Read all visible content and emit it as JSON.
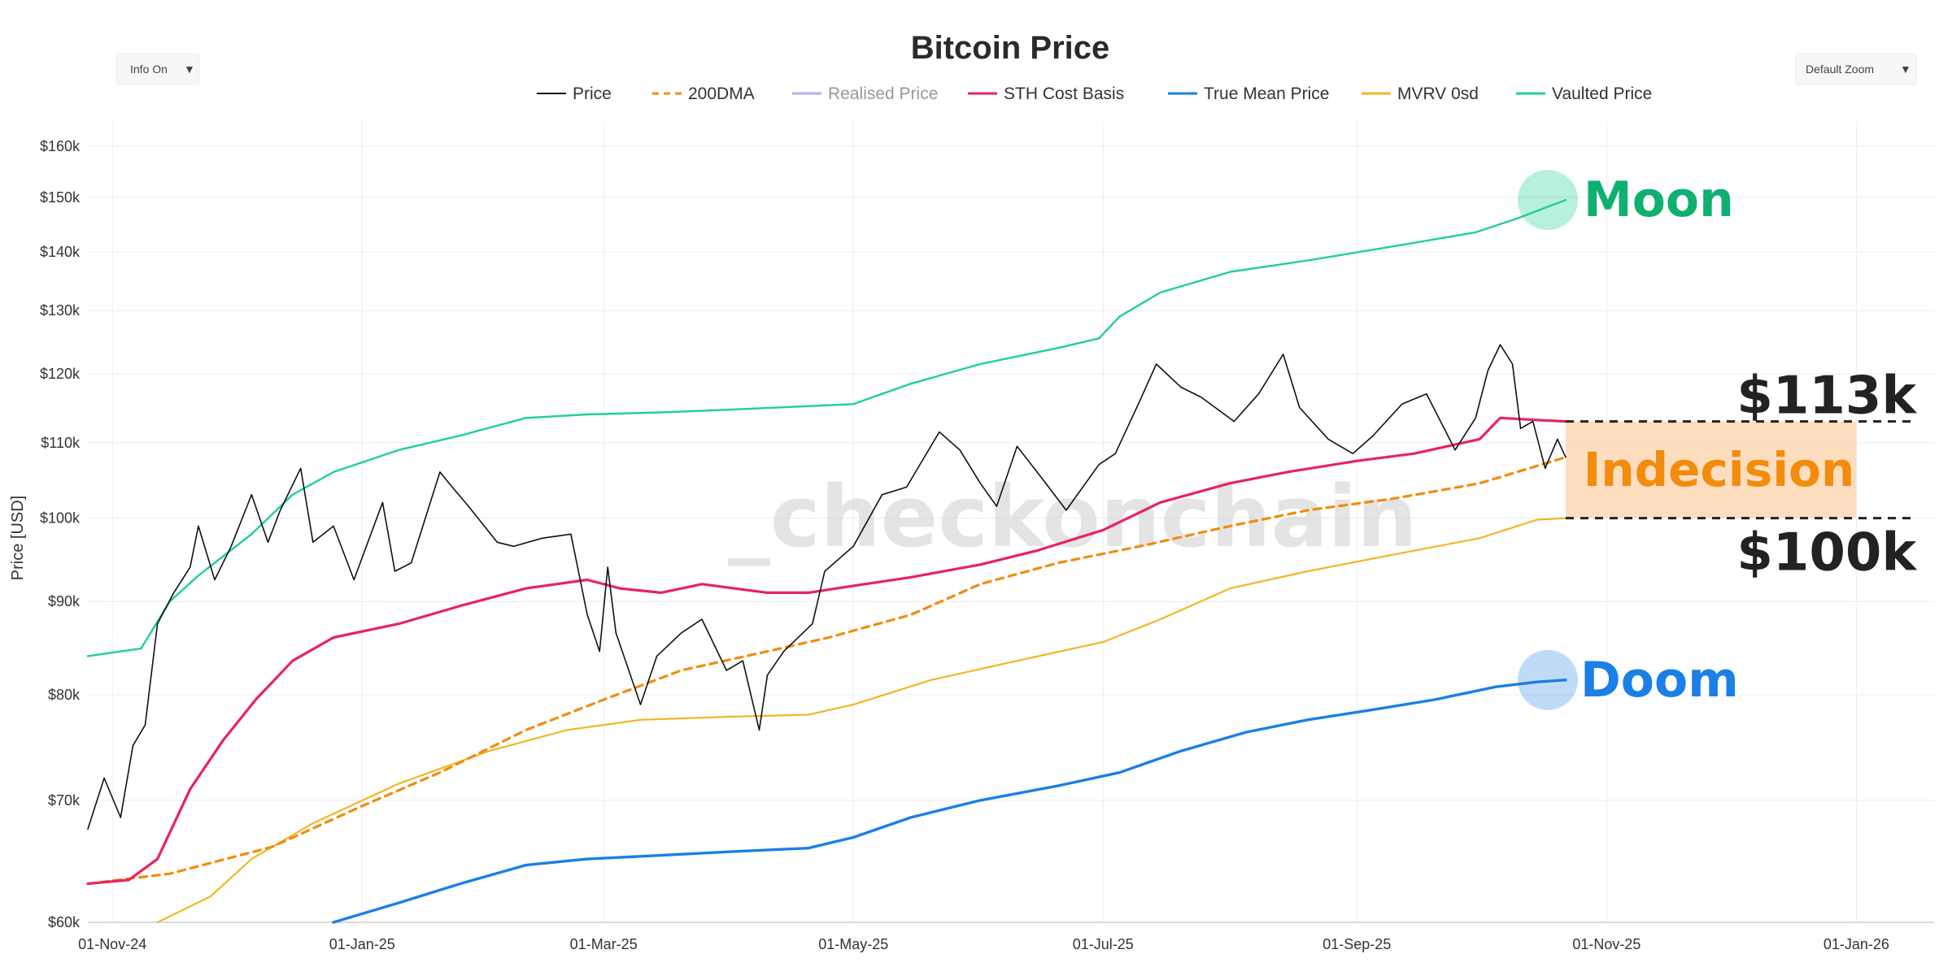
{
  "header": {
    "title": "Bitcoin Price",
    "info_toggle": "Info On",
    "zoom_select": "Default Zoom"
  },
  "watermark": "_checkonchain",
  "colors": {
    "price": "#111111",
    "dma200": "#f28c0c",
    "realised": "#b9aef0",
    "sth": "#e8235f",
    "true_mean": "#1a7fe6",
    "mvrv0": "#f4b526",
    "vaulted": "#20d092",
    "moon": "#10b070",
    "doom": "#1a7fe6",
    "indecision": "#f28c0c",
    "indecision_fill": "#fbd8b4"
  },
  "annotations": {
    "moon": "Moon",
    "doom": "Doom",
    "indecision": "Indecision",
    "upper_level": "$113k",
    "lower_level": "$100k"
  },
  "chart_data": {
    "type": "line",
    "title": "Bitcoin Price",
    "ylabel": "Price [USD]",
    "yscale": "log",
    "ylim": [
      60000,
      165000
    ],
    "xlim": [
      "2024-10-26",
      "2026-01-20"
    ],
    "x_ticks": [
      "01-Nov-24",
      "01-Jan-25",
      "01-Mar-25",
      "01-May-25",
      "01-Jul-25",
      "01-Sep-25",
      "01-Nov-25",
      "01-Jan-26"
    ],
    "y_ticks": [
      "$60k",
      "$70k",
      "$80k",
      "$90k",
      "$100k",
      "$110k",
      "$120k",
      "$130k",
      "$140k",
      "$150k",
      "$160k"
    ],
    "legend": [
      {
        "name": "Price",
        "key": "price",
        "style": "solid"
      },
      {
        "name": "200DMA",
        "key": "dma200",
        "style": "dashed"
      },
      {
        "name": "Realised Price",
        "key": "realised",
        "style": "solid",
        "hidden": true
      },
      {
        "name": "STH Cost Basis",
        "key": "sth",
        "style": "solid"
      },
      {
        "name": "True Mean Price",
        "key": "true_mean",
        "style": "solid"
      },
      {
        "name": "MVRV 0sd",
        "key": "mvrv0",
        "style": "solid"
      },
      {
        "name": "Vaulted Price",
        "key": "vaulted",
        "style": "solid"
      }
    ],
    "reference_lines": [
      113000,
      100000
    ],
    "series": [
      {
        "name": "Price",
        "key": "price",
        "width": 1.6,
        "points": [
          [
            "2024-10-26",
            67500
          ],
          [
            "2024-10-30",
            72000
          ],
          [
            "2024-11-03",
            68500
          ],
          [
            "2024-11-06",
            75000
          ],
          [
            "2024-11-09",
            77000
          ],
          [
            "2024-11-12",
            87500
          ],
          [
            "2024-11-16",
            91000
          ],
          [
            "2024-11-20",
            94000
          ],
          [
            "2024-11-22",
            99000
          ],
          [
            "2024-11-26",
            92500
          ],
          [
            "2024-11-30",
            96500
          ],
          [
            "2024-12-05",
            103000
          ],
          [
            "2024-12-09",
            97000
          ],
          [
            "2024-12-12",
            101000
          ],
          [
            "2024-12-17",
            106500
          ],
          [
            "2024-12-20",
            97000
          ],
          [
            "2024-12-25",
            99000
          ],
          [
            "2024-12-30",
            92500
          ],
          [
            "2025-01-06",
            102000
          ],
          [
            "2025-01-09",
            93500
          ],
          [
            "2025-01-13",
            94500
          ],
          [
            "2025-01-20",
            106000
          ],
          [
            "2025-01-23",
            104000
          ],
          [
            "2025-01-27",
            101500
          ],
          [
            "2025-02-03",
            97000
          ],
          [
            "2025-02-07",
            96500
          ],
          [
            "2025-02-14",
            97500
          ],
          [
            "2025-02-21",
            98000
          ],
          [
            "2025-02-25",
            88500
          ],
          [
            "2025-02-28",
            84500
          ],
          [
            "2025-03-02",
            94000
          ],
          [
            "2025-03-04",
            86500
          ],
          [
            "2025-03-10",
            79000
          ],
          [
            "2025-03-14",
            84000
          ],
          [
            "2025-03-20",
            86500
          ],
          [
            "2025-03-25",
            88000
          ],
          [
            "2025-03-31",
            82500
          ],
          [
            "2025-04-04",
            83500
          ],
          [
            "2025-04-08",
            76500
          ],
          [
            "2025-04-10",
            82000
          ],
          [
            "2025-04-14",
            84500
          ],
          [
            "2025-04-21",
            87500
          ],
          [
            "2025-04-24",
            93500
          ],
          [
            "2025-05-01",
            96500
          ],
          [
            "2025-05-08",
            103000
          ],
          [
            "2025-05-14",
            104000
          ],
          [
            "2025-05-22",
            111500
          ],
          [
            "2025-05-27",
            109000
          ],
          [
            "2025-06-01",
            104500
          ],
          [
            "2025-06-05",
            101500
          ],
          [
            "2025-06-10",
            109500
          ],
          [
            "2025-06-17",
            104500
          ],
          [
            "2025-06-22",
            101000
          ],
          [
            "2025-06-30",
            107000
          ],
          [
            "2025-07-04",
            108500
          ],
          [
            "2025-07-10",
            116000
          ],
          [
            "2025-07-14",
            121500
          ],
          [
            "2025-07-20",
            118000
          ],
          [
            "2025-07-25",
            116500
          ],
          [
            "2025-08-02",
            113000
          ],
          [
            "2025-08-08",
            117000
          ],
          [
            "2025-08-14",
            123000
          ],
          [
            "2025-08-18",
            115000
          ],
          [
            "2025-08-25",
            110500
          ],
          [
            "2025-08-31",
            108500
          ],
          [
            "2025-09-05",
            111000
          ],
          [
            "2025-09-12",
            115500
          ],
          [
            "2025-09-18",
            117000
          ],
          [
            "2025-09-25",
            109000
          ],
          [
            "2025-09-30",
            113500
          ],
          [
            "2025-10-03",
            120500
          ],
          [
            "2025-10-06",
            124500
          ],
          [
            "2025-10-09",
            121500
          ],
          [
            "2025-10-11",
            112000
          ],
          [
            "2025-10-14",
            113000
          ],
          [
            "2025-10-17",
            106500
          ],
          [
            "2025-10-20",
            110500
          ],
          [
            "2025-10-22",
            108000
          ]
        ]
      },
      {
        "name": "200DMA",
        "key": "dma200",
        "width": 3.2,
        "dash": "9,7",
        "points": [
          [
            "2024-10-26",
            63000
          ],
          [
            "2024-11-15",
            63800
          ],
          [
            "2024-12-10",
            66000
          ],
          [
            "2025-01-01",
            69500
          ],
          [
            "2025-01-20",
            72500
          ],
          [
            "2025-02-10",
            76500
          ],
          [
            "2025-03-01",
            79500
          ],
          [
            "2025-03-20",
            82500
          ],
          [
            "2025-04-10",
            84500
          ],
          [
            "2025-04-25",
            86000
          ],
          [
            "2025-05-15",
            88500
          ],
          [
            "2025-06-01",
            92000
          ],
          [
            "2025-06-20",
            94500
          ],
          [
            "2025-07-10",
            96500
          ],
          [
            "2025-08-01",
            99000
          ],
          [
            "2025-08-20",
            101000
          ],
          [
            "2025-09-10",
            102500
          ],
          [
            "2025-10-01",
            104500
          ],
          [
            "2025-10-22",
            108000
          ]
        ]
      },
      {
        "name": "STH Cost Basis",
        "key": "sth",
        "width": 3.2,
        "points": [
          [
            "2024-10-26",
            63000
          ],
          [
            "2024-11-05",
            63300
          ],
          [
            "2024-11-12",
            65000
          ],
          [
            "2024-11-20",
            71000
          ],
          [
            "2024-11-28",
            75500
          ],
          [
            "2024-12-06",
            79500
          ],
          [
            "2024-12-15",
            83500
          ],
          [
            "2024-12-25",
            86000
          ],
          [
            "2025-01-10",
            87500
          ],
          [
            "2025-01-25",
            89500
          ],
          [
            "2025-02-10",
            91500
          ],
          [
            "2025-02-25",
            92500
          ],
          [
            "2025-03-05",
            91500
          ],
          [
            "2025-03-15",
            91000
          ],
          [
            "2025-03-25",
            92000
          ],
          [
            "2025-04-10",
            91000
          ],
          [
            "2025-04-20",
            91000
          ],
          [
            "2025-05-01",
            91800
          ],
          [
            "2025-05-15",
            92800
          ],
          [
            "2025-06-01",
            94300
          ],
          [
            "2025-06-15",
            96000
          ],
          [
            "2025-07-01",
            98500
          ],
          [
            "2025-07-15",
            102000
          ],
          [
            "2025-08-01",
            104500
          ],
          [
            "2025-08-15",
            106000
          ],
          [
            "2025-09-01",
            107500
          ],
          [
            "2025-09-15",
            108500
          ],
          [
            "2025-10-01",
            110500
          ],
          [
            "2025-10-06",
            113500
          ],
          [
            "2025-10-15",
            113200
          ],
          [
            "2025-10-22",
            113000
          ]
        ]
      },
      {
        "name": "True Mean Price",
        "key": "true_mean",
        "width": 3.4,
        "points": [
          [
            "2024-12-25",
            60000
          ],
          [
            "2025-01-10",
            61500
          ],
          [
            "2025-01-25",
            63000
          ],
          [
            "2025-02-10",
            64500
          ],
          [
            "2025-02-25",
            65000
          ],
          [
            "2025-03-15",
            65300
          ],
          [
            "2025-04-01",
            65600
          ],
          [
            "2025-04-20",
            65900
          ],
          [
            "2025-05-01",
            66800
          ],
          [
            "2025-05-15",
            68500
          ],
          [
            "2025-06-01",
            70000
          ],
          [
            "2025-06-20",
            71300
          ],
          [
            "2025-07-05",
            72500
          ],
          [
            "2025-07-20",
            74500
          ],
          [
            "2025-08-05",
            76300
          ],
          [
            "2025-08-20",
            77500
          ],
          [
            "2025-09-05",
            78500
          ],
          [
            "2025-09-20",
            79500
          ],
          [
            "2025-10-05",
            80800
          ],
          [
            "2025-10-15",
            81300
          ],
          [
            "2025-10-22",
            81500
          ]
        ]
      },
      {
        "name": "MVRV 0sd",
        "key": "mvrv0",
        "width": 2.2,
        "points": [
          [
            "2024-11-12",
            60000
          ],
          [
            "2024-11-25",
            62000
          ],
          [
            "2024-12-05",
            65000
          ],
          [
            "2024-12-20",
            68000
          ],
          [
            "2025-01-10",
            71500
          ],
          [
            "2025-02-01",
            74500
          ],
          [
            "2025-02-20",
            76500
          ],
          [
            "2025-03-10",
            77500
          ],
          [
            "2025-04-01",
            77800
          ],
          [
            "2025-04-20",
            78000
          ],
          [
            "2025-05-01",
            79000
          ],
          [
            "2025-05-20",
            81500
          ],
          [
            "2025-06-10",
            83500
          ],
          [
            "2025-07-01",
            85500
          ],
          [
            "2025-07-15",
            88000
          ],
          [
            "2025-08-01",
            91500
          ],
          [
            "2025-08-20",
            93500
          ],
          [
            "2025-09-10",
            95500
          ],
          [
            "2025-10-01",
            97500
          ],
          [
            "2025-10-15",
            99800
          ],
          [
            "2025-10-22",
            100000
          ]
        ]
      },
      {
        "name": "Vaulted Price",
        "key": "vaulted",
        "width": 2.4,
        "points": [
          [
            "2024-10-26",
            84000
          ],
          [
            "2024-11-08",
            84800
          ],
          [
            "2024-11-15",
            90000
          ],
          [
            "2024-11-22",
            93000
          ],
          [
            "2024-12-05",
            98000
          ],
          [
            "2024-12-15",
            103000
          ],
          [
            "2024-12-25",
            106000
          ],
          [
            "2025-01-10",
            109000
          ],
          [
            "2025-01-25",
            111000
          ],
          [
            "2025-02-10",
            113500
          ],
          [
            "2025-02-25",
            114000
          ],
          [
            "2025-03-15",
            114300
          ],
          [
            "2025-04-01",
            114700
          ],
          [
            "2025-04-20",
            115200
          ],
          [
            "2025-05-01",
            115500
          ],
          [
            "2025-05-15",
            118500
          ],
          [
            "2025-06-01",
            121500
          ],
          [
            "2025-06-20",
            124000
          ],
          [
            "2025-06-30",
            125500
          ],
          [
            "2025-07-05",
            129000
          ],
          [
            "2025-07-15",
            133000
          ],
          [
            "2025-08-01",
            136500
          ],
          [
            "2025-08-20",
            138500
          ],
          [
            "2025-09-10",
            141000
          ],
          [
            "2025-09-30",
            143500
          ],
          [
            "2025-10-10",
            146000
          ],
          [
            "2025-10-22",
            149500
          ]
        ]
      }
    ]
  }
}
